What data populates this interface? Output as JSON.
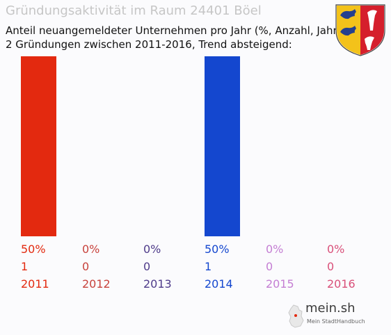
{
  "title": "Gründungsaktivität im Raum 24401 Böel",
  "subtitle_line1": "Anteil neuangemeldeter Unternehmen pro Jahr (%, Anzahl, Jahr)",
  "subtitle_line2": "2 Gründungen zwischen 2011-2016, Trend absteigend:",
  "logo": {
    "name": "mein.sh",
    "tagline": "Mein StadtHandbuch"
  },
  "chart_data": {
    "type": "bar",
    "categories": [
      "2011",
      "2012",
      "2013",
      "2014",
      "2015",
      "2016"
    ],
    "values": [
      50,
      0,
      0,
      50,
      0,
      0
    ],
    "value_labels": [
      "50%",
      "0%",
      "0%",
      "50%",
      "0%",
      "0%"
    ],
    "counts": [
      "1",
      "0",
      "0",
      "1",
      "0",
      "0"
    ],
    "colors": [
      "#e3290f",
      "#c8423c",
      "#4e3b8a",
      "#1447cf",
      "#c47ed3",
      "#d9507a"
    ],
    "ylim": [
      0,
      50
    ]
  }
}
